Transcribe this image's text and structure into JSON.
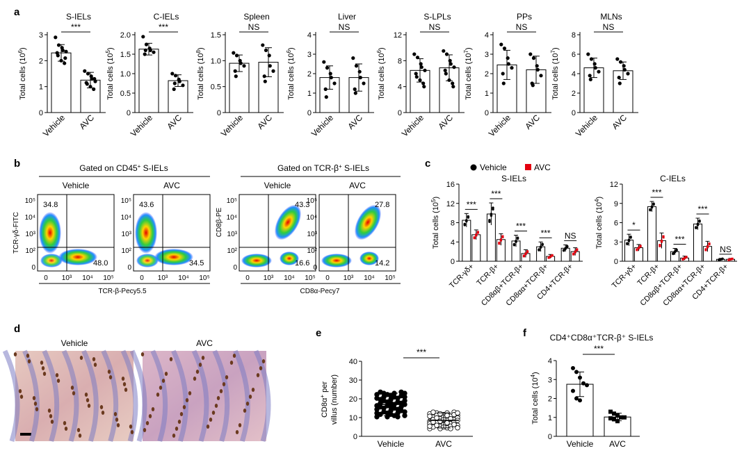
{
  "panel_labels": {
    "a": "a",
    "b": "b",
    "c": "c",
    "d": "d",
    "e": "e",
    "f": "f"
  },
  "colors": {
    "vehicle": "#000000",
    "avc": "#e3000f",
    "bar_fill": "#ffffff"
  },
  "panel_a": [
    {
      "title": "S-IELs",
      "ylabel": "Total cells (10",
      "exp": "6",
      "yticks": [
        "0",
        "1",
        "2",
        "3"
      ],
      "ymax": 3,
      "sig": "***",
      "xcats": [
        "Vehicle",
        "AVC"
      ],
      "vehicle": {
        "mean": 2.3,
        "sd": 0.32,
        "points": [
          2.9,
          2.6,
          2.5,
          2.4,
          2.35,
          2.3,
          2.2,
          2.0,
          1.9,
          2.1
        ]
      },
      "avc": {
        "mean": 1.25,
        "sd": 0.3,
        "points": [
          1.6,
          1.5,
          1.4,
          1.3,
          1.2,
          1.15,
          1.1,
          1.0,
          0.9,
          1.3
        ]
      }
    },
    {
      "title": "C-IELs",
      "ylabel": "Total cells (10",
      "exp": "5",
      "yticks": [
        "0",
        "0.5",
        "1.0",
        "1.5",
        "2.0"
      ],
      "ymax": 2.0,
      "sig": "***",
      "xcats": [
        "Vehicle",
        "AVC"
      ],
      "vehicle": {
        "mean": 1.63,
        "sd": 0.15,
        "points": [
          1.95,
          1.75,
          1.65,
          1.6,
          1.55,
          1.5,
          1.6
        ]
      },
      "avc": {
        "mean": 0.82,
        "sd": 0.15,
        "points": [
          1.0,
          0.95,
          0.85,
          0.8,
          0.7,
          0.6,
          0.75
        ]
      }
    },
    {
      "title": "Spleen",
      "ylabel": "Total cells (10",
      "exp": "8",
      "yticks": [
        "0",
        "0.5",
        "1.0",
        "1.5"
      ],
      "ymax": 1.5,
      "sig": "NS",
      "xcats": [
        "Vehicle",
        "AVC"
      ],
      "vehicle": {
        "mean": 0.95,
        "sd": 0.16,
        "points": [
          1.15,
          1.1,
          1.0,
          0.95,
          0.9,
          0.8,
          0.7
        ]
      },
      "avc": {
        "mean": 0.97,
        "sd": 0.28,
        "points": [
          1.3,
          1.2,
          1.1,
          0.9,
          0.8,
          0.7,
          0.6
        ]
      }
    },
    {
      "title": "Liver",
      "ylabel": "Total cells (10",
      "exp": "6",
      "yticks": [
        "0",
        "1",
        "2",
        "3",
        "4"
      ],
      "ymax": 4,
      "sig": "NS",
      "xcats": [
        "Vehicle",
        "AVC"
      ],
      "vehicle": {
        "mean": 1.8,
        "sd": 0.6,
        "points": [
          2.6,
          2.3,
          2.0,
          1.8,
          1.5,
          1.2,
          0.8
        ]
      },
      "avc": {
        "mean": 1.8,
        "sd": 0.7,
        "points": [
          2.8,
          2.4,
          2.1,
          1.8,
          1.5,
          1.2,
          1.0
        ]
      }
    },
    {
      "title": "S-LPLs",
      "ylabel": "Total cells (10",
      "exp": "6",
      "yticks": [
        "0",
        "4",
        "8",
        "12"
      ],
      "ymax": 12,
      "sig": "NS",
      "xcats": [
        "Vehicle",
        "AVC"
      ],
      "vehicle": {
        "mean": 6.5,
        "sd": 1.8,
        "points": [
          9.0,
          8.5,
          7.5,
          7.0,
          6.5,
          6.0,
          5.5,
          5.0,
          4.5,
          4.0
        ]
      },
      "avc": {
        "mean": 6.9,
        "sd": 2.0,
        "points": [
          9.5,
          9.0,
          8.0,
          7.5,
          7.0,
          6.5,
          6.0,
          5.0,
          4.5,
          4.0
        ]
      }
    },
    {
      "title": "PPs",
      "ylabel": "Total cells (10",
      "exp": "7",
      "yticks": [
        "0",
        "1",
        "2",
        "3",
        "4"
      ],
      "ymax": 4,
      "sig": "NS",
      "xcats": [
        "Vehicle",
        "AVC"
      ],
      "vehicle": {
        "mean": 2.45,
        "sd": 0.75,
        "points": [
          3.5,
          3.3,
          2.8,
          2.5,
          2.3,
          2.0,
          1.5
        ]
      },
      "avc": {
        "mean": 2.2,
        "sd": 0.7,
        "points": [
          3.0,
          2.8,
          2.4,
          2.2,
          1.9,
          1.5,
          1.4
        ]
      }
    },
    {
      "title": "MLNs",
      "ylabel": "Total cells (10",
      "exp": "7",
      "yticks": [
        "0",
        "2",
        "4",
        "6",
        "8"
      ],
      "ymax": 8,
      "sig": "NS",
      "xcats": [
        "Vehicle",
        "AVC"
      ],
      "vehicle": {
        "mean": 4.6,
        "sd": 1.0,
        "points": [
          6.0,
          5.5,
          5.0,
          4.6,
          4.2,
          3.8,
          3.4
        ]
      },
      "avc": {
        "mean": 4.3,
        "sd": 0.9,
        "points": [
          5.5,
          5.2,
          4.8,
          4.4,
          4.0,
          3.6,
          3.0
        ]
      }
    }
  ],
  "panel_b": {
    "group1_title": "Gated on CD45",
    "group1_title_sup": "+",
    "group1_title_end": " S-IELs",
    "group2_title": "Gated on TCR-β",
    "group2_title_sup": "+",
    "group2_title_end": " S-IELs",
    "sub_labels": [
      "Vehicle",
      "AVC",
      "Vehicle",
      "AVC"
    ],
    "g1_ylabel": "TCR-γδ-FITC",
    "g1_xlabel": "TCR-β-Pecy5.5",
    "g2_ylabel": "CD8β-PE",
    "g2_xlabel": "CD8α-Pecy7",
    "ticks_y": [
      "10⁵",
      "10⁴",
      "10³",
      "10²",
      "0"
    ],
    "ticks_x": [
      "0",
      "10³",
      "10⁴",
      "10⁵"
    ],
    "plots": [
      {
        "q_top": "34.8",
        "q_bottom": "48.0"
      },
      {
        "q_top": "43.6",
        "q_bottom": "34.5"
      },
      {
        "q_top": "43.3",
        "q_bottom": "16.6"
      },
      {
        "q_top": "27.8",
        "q_bottom": "14.2"
      }
    ]
  },
  "panel_c": {
    "legend": {
      "vehicle": "Vehicle",
      "avc": "AVC"
    },
    "charts": [
      {
        "title": "S-IELs",
        "ylabel": "Total cells (10",
        "exp": "5",
        "yticks": [
          "0",
          "4",
          "8",
          "12",
          "16"
        ],
        "ymax": 16,
        "categories": [
          "TCR-γδ+",
          "TCR-β+",
          "CD8αβ+TCR-β+",
          "CD8αα+TCR-β+",
          "CD4+TCR-β+"
        ],
        "sig": [
          "***",
          "***",
          "***",
          "***",
          "NS"
        ],
        "vehicle": [
          8.5,
          9.8,
          4.2,
          3.0,
          2.7
        ],
        "vehicle_sd": [
          1.4,
          2.3,
          1.2,
          1.0,
          0.7
        ],
        "avc": [
          5.5,
          4.5,
          1.6,
          1.0,
          2.0
        ],
        "avc_sd": [
          1.0,
          1.2,
          0.8,
          0.4,
          0.8
        ]
      },
      {
        "title": "C-IELs",
        "ylabel": "Total cells (10",
        "exp": "4",
        "yticks": [
          "0",
          "3",
          "6",
          "9",
          "12"
        ],
        "ymax": 12,
        "categories": [
          "TCR-γδ+",
          "TCR-β+",
          "CD8αβ+TCR-β+",
          "CD8αα+TCR-β+",
          "CD4+TCR-β+"
        ],
        "sig": [
          "*",
          "***",
          "***",
          "***",
          "NS"
        ],
        "vehicle": [
          3.3,
          8.5,
          1.5,
          5.8,
          0.3
        ],
        "vehicle_sd": [
          0.9,
          0.8,
          0.5,
          0.9,
          0.15
        ],
        "avc": [
          2.1,
          3.2,
          0.5,
          2.3,
          0.3
        ],
        "avc_sd": [
          0.5,
          1.2,
          0.3,
          0.8,
          0.15
        ]
      }
    ]
  },
  "panel_d": {
    "labels": [
      "Vehicle",
      "AVC"
    ]
  },
  "panel_e": {
    "ylabel1": "CD8α",
    "ylabel1_sup": "+",
    "ylabel1_end": " per",
    "ylabel2": "villus (number)",
    "yticks": [
      "0",
      "10",
      "20",
      "30",
      "40"
    ],
    "ymax": 40,
    "sig": "***",
    "xcats": [
      "Vehicle",
      "AVC"
    ],
    "vehicle": {
      "mean": 17,
      "sd": 6
    },
    "avc": {
      "mean": 8.5,
      "sd": 4
    }
  },
  "panel_f": {
    "title": "CD4⁺CD8α⁺TCR-β⁺ S-IELs",
    "ylabel": "Total cells (10",
    "exp": "4",
    "yticks": [
      "0",
      "1",
      "2",
      "3",
      "4"
    ],
    "ymax": 4,
    "sig": "***",
    "xcats": [
      "Vehicle",
      "AVC"
    ],
    "vehicle": {
      "mean": 2.75,
      "sd": 0.65,
      "points": [
        3.6,
        3.4,
        3.1,
        2.8,
        2.7,
        2.4,
        2.0,
        1.9
      ]
    },
    "avc": {
      "mean": 1.02,
      "sd": 0.2,
      "points": [
        1.3,
        1.2,
        1.1,
        1.0,
        1.0,
        0.95,
        0.9,
        0.8
      ]
    }
  }
}
